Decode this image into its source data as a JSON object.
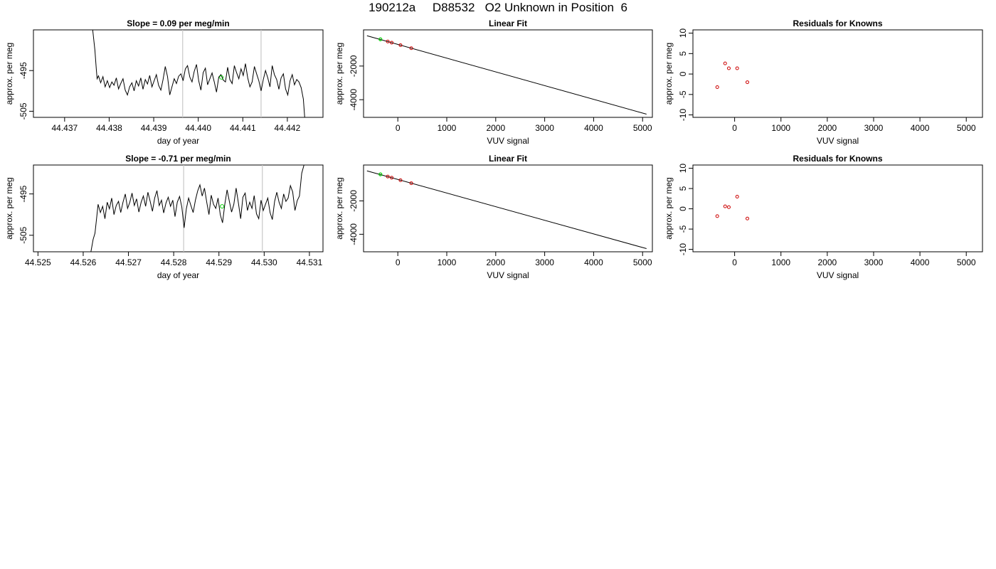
{
  "page": {
    "title": "190212a     D88532   O2 Unknown in Position  6"
  },
  "colors": {
    "trace": "#000000",
    "known_point": "#cc0000",
    "unknown_point": "#00cc00",
    "marker_line": "#c8c8c8",
    "fit_line": "#000000"
  },
  "chart_data": [
    {
      "type": "line",
      "title": "Slope =  0.09  per meg/min",
      "xlabel": "day of year",
      "ylabel": "approx. per meg",
      "xlim": [
        44.4363,
        44.4428
      ],
      "ylim": [
        -506.5,
        -485.0
      ],
      "x_ticks": [
        44.437,
        44.438,
        44.439,
        44.44,
        44.441,
        44.442
      ],
      "x_tick_labels": [
        "44.437",
        "44.438",
        "44.439",
        "44.440",
        "44.441",
        "44.442"
      ],
      "y_ticks": [
        -505,
        -495
      ],
      "y_tick_labels": [
        "-505",
        "-495"
      ],
      "vlines": [
        44.43965,
        44.44141
      ],
      "series": [
        {
          "x": [
            44.43763,
            44.43768,
            44.43771,
            44.43773,
            44.43776,
            44.43781,
            44.43786,
            44.43791,
            44.43796,
            44.43801,
            44.43806,
            44.43811,
            44.43816,
            44.43821,
            44.43826,
            44.43831,
            44.43836,
            44.43841,
            44.43846,
            44.43851,
            44.43856,
            44.43861,
            44.43866,
            44.43871,
            44.43876,
            44.43881,
            44.43886,
            44.43891,
            44.43896,
            44.43901,
            44.43906,
            44.43911,
            44.43916,
            44.43921,
            44.43926,
            44.43931,
            44.43936,
            44.43941,
            44.43946,
            44.43951,
            44.43956,
            44.43961,
            44.43966,
            44.43971,
            44.43976,
            44.43981,
            44.43986,
            44.43991,
            44.43996,
            44.44001,
            44.44006,
            44.44011,
            44.44016,
            44.44021,
            44.44026,
            44.44031,
            44.44036,
            44.44041,
            44.44046,
            44.44051,
            44.44056,
            44.44061,
            44.44066,
            44.44071,
            44.44076,
            44.44081,
            44.44086,
            44.44091,
            44.44096,
            44.44101,
            44.44106,
            44.44111,
            44.44116,
            44.44121,
            44.44126,
            44.44131,
            44.44136,
            44.44141,
            44.44146,
            44.44151,
            44.44156,
            44.44161,
            44.44166,
            44.44171,
            44.44176,
            44.44181,
            44.44186,
            44.44191,
            44.44196,
            44.44201,
            44.44206,
            44.44211,
            44.44216,
            44.44221,
            44.44226,
            44.44231,
            44.44236,
            44.44239
          ],
          "y": [
            -485.0,
            -490.0,
            -494.5,
            -497.0,
            -496.3,
            -498.0,
            -496.5,
            -499.0,
            -497.5,
            -499.2,
            -497.8,
            -498.6,
            -496.8,
            -499.5,
            -498.2,
            -497.0,
            -499.8,
            -501.0,
            -499.0,
            -498.0,
            -500.0,
            -497.5,
            -498.8,
            -496.8,
            -499.6,
            -497.2,
            -498.3,
            -496.2,
            -499.0,
            -497.5,
            -496.0,
            -498.6,
            -499.8,
            -497.2,
            -494.0,
            -496.5,
            -501.0,
            -499.0,
            -497.0,
            -498.2,
            -496.4,
            -495.8,
            -497.5,
            -494.6,
            -493.8,
            -496.6,
            -497.8,
            -495.2,
            -493.5,
            -497.5,
            -499.8,
            -495.5,
            -494.4,
            -498.5,
            -497.0,
            -495.6,
            -497.8,
            -500.3,
            -496.6,
            -496.0,
            -497.3,
            -497.8,
            -494.2,
            -497.2,
            -498.2,
            -493.8,
            -495.5,
            -497.0,
            -494.6,
            -496.2,
            -493.3,
            -496.8,
            -499.0,
            -497.8,
            -494.0,
            -495.8,
            -497.5,
            -500.0,
            -497.2,
            -495.0,
            -496.8,
            -499.0,
            -493.8,
            -496.0,
            -497.2,
            -499.6,
            -496.8,
            -495.8,
            -499.5,
            -501.0,
            -497.5,
            -496.0,
            -498.5,
            -497.2,
            -497.8,
            -499.2,
            -502.0,
            -506.5
          ]
        }
      ],
      "highlight_point": {
        "x": 44.44052,
        "y": -496.7
      }
    },
    {
      "type": "scatter",
      "title": "Linear Fit",
      "xlabel": "VUV signal",
      "ylabel": "approx. per meg",
      "xlim": [
        -700,
        5200
      ],
      "ylim": [
        -5050,
        150
      ],
      "x_ticks": [
        0,
        1000,
        2000,
        3000,
        4000,
        5000
      ],
      "x_tick_labels": [
        "0",
        "1000",
        "2000",
        "3000",
        "4000",
        "5000"
      ],
      "y_ticks": [
        -4000,
        -2000
      ],
      "y_tick_labels": [
        "-4000",
        "-2000"
      ],
      "fit_line": {
        "x": [
          -630,
          5080
        ],
        "y": [
          -200,
          -4860
        ]
      },
      "known_points": [
        {
          "x": -205,
          "y": -540
        },
        {
          "x": -125,
          "y": -610
        },
        {
          "x": 55,
          "y": -760
        },
        {
          "x": 275,
          "y": -940
        }
      ],
      "unknown_points": [
        {
          "x": -355,
          "y": -410
        }
      ]
    },
    {
      "type": "scatter",
      "title": "Residuals for Knowns",
      "xlabel": "VUV signal",
      "ylabel": "approx. per meg",
      "xlim": [
        -900,
        5350
      ],
      "ylim": [
        -10.6,
        10.8
      ],
      "x_ticks": [
        0,
        1000,
        2000,
        3000,
        4000,
        5000
      ],
      "x_tick_labels": [
        "0",
        "1000",
        "2000",
        "3000",
        "4000",
        "5000"
      ],
      "y_ticks": [
        -10,
        -5,
        0,
        5,
        10
      ],
      "y_tick_labels": [
        "-10",
        "-5",
        "0",
        "5",
        "10"
      ],
      "points": [
        {
          "x": -375,
          "y": -3.2
        },
        {
          "x": -205,
          "y": 2.6
        },
        {
          "x": -125,
          "y": 1.4
        },
        {
          "x": 55,
          "y": 1.4
        },
        {
          "x": 275,
          "y": -2.0
        }
      ]
    },
    {
      "type": "line",
      "title": "Slope =  -0.71  per meg/min",
      "xlabel": "day of year",
      "ylabel": "approx. per meg",
      "xlim": [
        44.5249,
        44.5313
      ],
      "ylim": [
        -509.0,
        -488.0
      ],
      "x_ticks": [
        44.525,
        44.526,
        44.527,
        44.528,
        44.529,
        44.53,
        44.531
      ],
      "x_tick_labels": [
        "44.525",
        "44.526",
        "44.527",
        "44.528",
        "44.529",
        "44.530",
        "44.531"
      ],
      "y_ticks": [
        -505,
        -495
      ],
      "y_tick_labels": [
        "-505",
        "-495"
      ],
      "vlines": [
        44.52822,
        44.52996
      ],
      "series": [
        {
          "x": [
            44.52617,
            44.52622,
            44.52626,
            44.52629,
            44.52633,
            44.52638,
            44.52643,
            44.52648,
            44.52653,
            44.52658,
            44.52663,
            44.52668,
            44.52673,
            44.52678,
            44.52683,
            44.52688,
            44.52693,
            44.52698,
            44.52703,
            44.52708,
            44.52713,
            44.52718,
            44.52723,
            44.52728,
            44.52733,
            44.52738,
            44.52743,
            44.52748,
            44.52753,
            44.52758,
            44.52763,
            44.52768,
            44.52773,
            44.52778,
            44.52783,
            44.52788,
            44.52793,
            44.52798,
            44.52803,
            44.52808,
            44.52813,
            44.52818,
            44.52823,
            44.52828,
            44.52833,
            44.52838,
            44.52843,
            44.52848,
            44.52853,
            44.52858,
            44.52863,
            44.52868,
            44.52873,
            44.52878,
            44.52883,
            44.52888,
            44.52893,
            44.52898,
            44.52903,
            44.52908,
            44.52913,
            44.52918,
            44.52923,
            44.52928,
            44.52933,
            44.52938,
            44.52943,
            44.52948,
            44.52953,
            44.52958,
            44.52963,
            44.52968,
            44.52973,
            44.52978,
            44.52983,
            44.52988,
            44.52993,
            44.52998,
            44.53003,
            44.53008,
            44.53013,
            44.53018,
            44.53023,
            44.53028,
            44.53033,
            44.53038,
            44.53043,
            44.53048,
            44.53053,
            44.53058,
            44.53063,
            44.53068,
            44.53073,
            44.53078,
            44.53083,
            44.53088
          ],
          "y": [
            -509.0,
            -506.0,
            -504.5,
            -501.5,
            -497.5,
            -499.5,
            -498.0,
            -501.0,
            -497.0,
            -498.6,
            -496.0,
            -500.0,
            -497.8,
            -496.8,
            -499.5,
            -497.0,
            -495.0,
            -498.5,
            -497.0,
            -494.8,
            -497.8,
            -496.2,
            -499.4,
            -497.0,
            -495.5,
            -498.0,
            -494.6,
            -496.8,
            -499.2,
            -496.0,
            -494.2,
            -497.8,
            -496.5,
            -499.6,
            -497.2,
            -495.8,
            -498.0,
            -496.5,
            -500.5,
            -497.0,
            -495.6,
            -498.2,
            -503.2,
            -498.6,
            -496.0,
            -497.8,
            -499.5,
            -496.5,
            -494.3,
            -492.8,
            -495.5,
            -493.6,
            -497.0,
            -500.0,
            -495.3,
            -497.5,
            -498.5,
            -496.0,
            -500.0,
            -502.0,
            -497.5,
            -494.0,
            -496.8,
            -499.4,
            -497.5,
            -493.6,
            -497.2,
            -501.0,
            -495.8,
            -494.8,
            -499.0,
            -497.0,
            -498.5,
            -495.4,
            -499.8,
            -501.0,
            -496.5,
            -499.0,
            -497.5,
            -496.0,
            -499.5,
            -501.2,
            -496.8,
            -494.6,
            -497.0,
            -498.5,
            -495.0,
            -496.8,
            -496.0,
            -493.0,
            -494.5,
            -499.0,
            -496.6,
            -495.5,
            -490.0,
            -488.0
          ]
        }
      ],
      "highlight_point": {
        "x": 44.52907,
        "y": -498.0
      }
    },
    {
      "type": "scatter",
      "title": "Linear Fit",
      "xlabel": "VUV signal",
      "ylabel": "approx. per meg",
      "xlim": [
        -700,
        5200
      ],
      "ylim": [
        -5050,
        150
      ],
      "x_ticks": [
        0,
        1000,
        2000,
        3000,
        4000,
        5000
      ],
      "x_tick_labels": [
        "0",
        "1000",
        "2000",
        "3000",
        "4000",
        "5000"
      ],
      "y_ticks": [
        -4000,
        -2000
      ],
      "y_tick_labels": [
        "-4000",
        "-2000"
      ],
      "fit_line": {
        "x": [
          -630,
          5080
        ],
        "y": [
          -200,
          -4860
        ]
      },
      "known_points": [
        {
          "x": -205,
          "y": -540
        },
        {
          "x": -125,
          "y": -610
        },
        {
          "x": 55,
          "y": -760
        },
        {
          "x": 275,
          "y": -940
        }
      ],
      "unknown_points": [
        {
          "x": -355,
          "y": -410
        }
      ]
    },
    {
      "type": "scatter",
      "title": "Residuals for Knowns",
      "xlabel": "VUV signal",
      "ylabel": "approx. per meg",
      "xlim": [
        -900,
        5350
      ],
      "ylim": [
        -10.6,
        10.8
      ],
      "x_ticks": [
        0,
        1000,
        2000,
        3000,
        4000,
        5000
      ],
      "x_tick_labels": [
        "0",
        "1000",
        "2000",
        "3000",
        "4000",
        "5000"
      ],
      "y_ticks": [
        -10,
        -5,
        0,
        5,
        10
      ],
      "y_tick_labels": [
        "-10",
        "-5",
        "0",
        "5",
        "10"
      ],
      "points": [
        {
          "x": -375,
          "y": -1.8
        },
        {
          "x": -205,
          "y": 0.6
        },
        {
          "x": -125,
          "y": 0.4
        },
        {
          "x": 55,
          "y": 3.0
        },
        {
          "x": 275,
          "y": -2.4
        }
      ]
    }
  ]
}
